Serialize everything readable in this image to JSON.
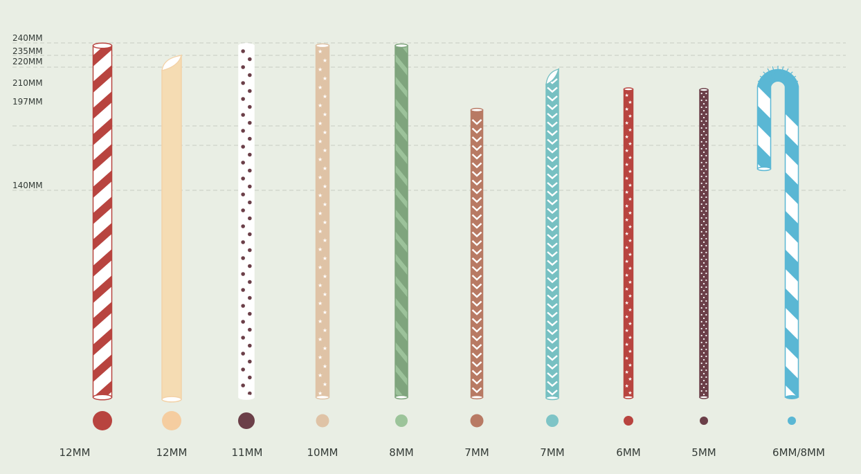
{
  "background": "#e9eee4",
  "gridline_color": "#c6ccc2",
  "length_labels": [
    "240MM",
    "235MM",
    "220MM",
    "210MM",
    "197MM",
    "140MM"
  ],
  "straws": [
    {
      "id": "s1",
      "diameter_label": "12MM",
      "length_mm": 240,
      "pattern": "diagonal-stripes",
      "color": "#b8443f",
      "accent": "#ffffff",
      "dot_color": "#b8443f"
    },
    {
      "id": "s2",
      "diameter_label": "12MM",
      "length_mm": 220,
      "pattern": "solid-angled-tip",
      "color": "#f5dcb3",
      "accent": "#f5c99c",
      "dot_color": "#f5cda0"
    },
    {
      "id": "s3",
      "diameter_label": "11MM",
      "length_mm": 240,
      "pattern": "polka-dots",
      "color": "#ffffff",
      "accent": "#6b3f48",
      "dot_color": "#6b3f48"
    },
    {
      "id": "s4",
      "diameter_label": "10MM",
      "length_mm": 240,
      "pattern": "stars",
      "color": "#dfc3a6",
      "accent": "#ffffff",
      "dot_color": "#dfc3a6"
    },
    {
      "id": "s5",
      "diameter_label": "8MM",
      "length_mm": 240,
      "pattern": "tonal-stripes",
      "color": "#7fa47d",
      "accent": "#9cc29a",
      "dot_color": "#9cc49a"
    },
    {
      "id": "s6",
      "diameter_label": "7MM",
      "length_mm": 197,
      "pattern": "chevrons",
      "color": "#b87a64",
      "accent": "#ffffff",
      "dot_color": "#b87a64"
    },
    {
      "id": "s7",
      "diameter_label": "7MM",
      "length_mm": 220,
      "pattern": "chevrons-angled",
      "color": "#77c0c2",
      "accent": "#ffffff",
      "dot_color": "#7ec4c6"
    },
    {
      "id": "s8",
      "diameter_label": "6MM",
      "length_mm": 210,
      "pattern": "stars",
      "color": "#b8443f",
      "accent": "#ffffff",
      "dot_color": "#b8443f"
    },
    {
      "id": "s9",
      "diameter_label": "5MM",
      "length_mm": 210,
      "pattern": "small-dots",
      "color": "#6b3f48",
      "accent": "#ffffff",
      "dot_color": "#6b3f48"
    },
    {
      "id": "s10",
      "diameter_label": "6MM/8MM",
      "length_mm": 240,
      "pattern": "candy-cane",
      "color": "#5ab7d4",
      "accent": "#ffffff",
      "dot_color": "#5ab7d4"
    }
  ]
}
